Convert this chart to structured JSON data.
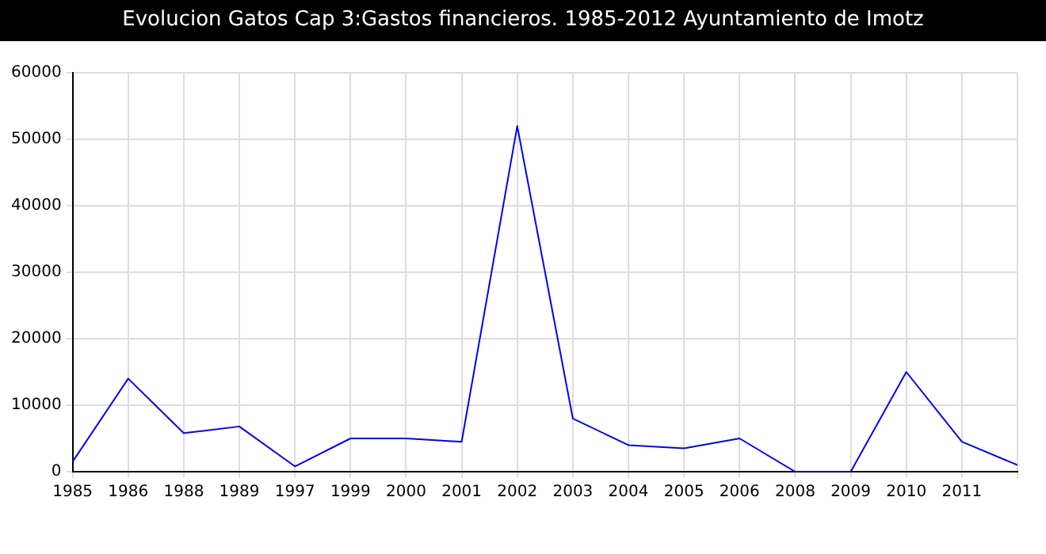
{
  "chart_data": {
    "type": "line",
    "title": "Evolucion Gatos Cap 3:Gastos financieros. 1985-2012 Ayuntamiento de Imotz",
    "categories": [
      "1985",
      "1986",
      "1988",
      "1989",
      "1997",
      "1999",
      "2000",
      "2001",
      "2002",
      "2003",
      "2004",
      "2005",
      "2006",
      "2008",
      "2009",
      "2010",
      "2011",
      null
    ],
    "series": [
      {
        "color": "#0000ff",
        "values": [
          1500,
          14000,
          5800,
          6800,
          800,
          5000,
          5000,
          4500,
          52000,
          8000,
          4000,
          3500,
          5000,
          0,
          0,
          15000,
          4500,
          1000
        ]
      }
    ],
    "ylim": [
      0,
      60000
    ],
    "yticks": [
      0,
      10000,
      20000,
      30000,
      40000,
      50000,
      60000
    ],
    "grid": true,
    "legend": false,
    "marker": "none"
  }
}
